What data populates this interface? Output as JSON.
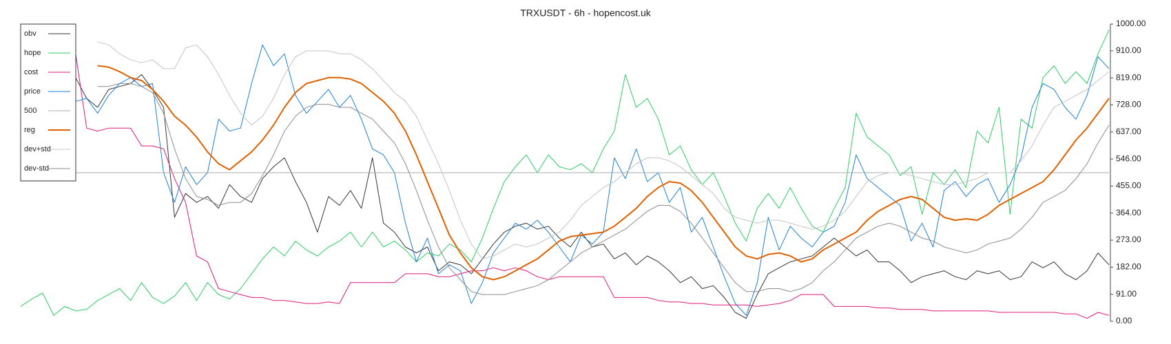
{
  "chart_data": {
    "type": "line",
    "title": "TRXUSDT - 6h - hopencost.uk",
    "ylim": [
      0,
      1000
    ],
    "yticks": [
      {
        "value": 0,
        "label": "0.00"
      },
      {
        "value": 91,
        "label": "91.00"
      },
      {
        "value": 182,
        "label": "182.00"
      },
      {
        "value": 273,
        "label": "273.00"
      },
      {
        "value": 364,
        "label": "364.00"
      },
      {
        "value": 455,
        "label": "455.00"
      },
      {
        "value": 546,
        "label": "546.00"
      },
      {
        "value": 637,
        "label": "637.00"
      },
      {
        "value": 728,
        "label": "728.00"
      },
      {
        "value": 819,
        "label": "819.00"
      },
      {
        "value": 910,
        "label": "910.00"
      },
      {
        "value": 1000,
        "label": "1000.00"
      }
    ],
    "y_axis_side": "right",
    "legend": "top-left",
    "series": [
      {
        "name": "obv",
        "color": "#333333",
        "width": 1,
        "values": [
          null,
          null,
          null,
          null,
          null,
          820,
          750,
          720,
          780,
          790,
          800,
          830,
          780,
          720,
          350,
          430,
          400,
          420,
          380,
          460,
          420,
          400,
          480,
          520,
          550,
          470,
          400,
          300,
          420,
          390,
          440,
          380,
          550,
          330,
          300,
          250,
          230,
          250,
          170,
          200,
          190,
          160,
          210,
          260,
          300,
          320,
          330,
          310,
          320,
          280,
          250,
          300,
          250,
          260,
          210,
          230,
          190,
          220,
          200,
          170,
          130,
          150,
          110,
          120,
          80,
          30,
          10,
          90,
          160,
          180,
          200,
          210,
          220,
          250,
          280,
          250,
          220,
          240,
          200,
          200,
          170,
          130,
          150,
          160,
          170,
          150,
          140,
          170,
          160,
          170,
          140,
          150,
          200,
          180,
          200,
          160,
          140,
          170,
          230,
          190
        ]
      },
      {
        "name": "hope",
        "color": "#2ecc62",
        "width": 1,
        "values": [
          50,
          75,
          95,
          20,
          50,
          35,
          40,
          70,
          90,
          110,
          70,
          130,
          80,
          60,
          85,
          130,
          70,
          130,
          90,
          75,
          110,
          160,
          210,
          250,
          220,
          270,
          240,
          220,
          250,
          270,
          300,
          250,
          300,
          250,
          270,
          240,
          200,
          230,
          220,
          260,
          240,
          200,
          280,
          380,
          470,
          520,
          560,
          500,
          560,
          520,
          510,
          530,
          500,
          580,
          640,
          830,
          720,
          750,
          680,
          560,
          590,
          510,
          460,
          500,
          420,
          330,
          270,
          380,
          430,
          380,
          450,
          380,
          320,
          300,
          380,
          450,
          700,
          620,
          590,
          560,
          490,
          520,
          360,
          500,
          460,
          510,
          450,
          640,
          600,
          720,
          360,
          680,
          650,
          820,
          860,
          800,
          840,
          800,
          900,
          980
        ]
      },
      {
        "name": "cost",
        "color": "#e0197a",
        "width": 1,
        "values": [
          null,
          null,
          null,
          null,
          null,
          900,
          650,
          640,
          650,
          650,
          650,
          590,
          590,
          580,
          480,
          400,
          220,
          200,
          110,
          100,
          90,
          80,
          80,
          70,
          70,
          65,
          60,
          60,
          65,
          60,
          130,
          130,
          130,
          130,
          130,
          160,
          160,
          160,
          150,
          150,
          160,
          170,
          170,
          180,
          170,
          180,
          170,
          150,
          140,
          150,
          150,
          150,
          150,
          150,
          80,
          80,
          80,
          80,
          70,
          65,
          65,
          60,
          60,
          55,
          55,
          55,
          55,
          50,
          55,
          60,
          70,
          90,
          90,
          90,
          50,
          50,
          50,
          50,
          45,
          45,
          40,
          40,
          40,
          35,
          35,
          35,
          35,
          35,
          35,
          30,
          30,
          30,
          30,
          30,
          30,
          25,
          25,
          10,
          30,
          20
        ]
      },
      {
        "name": "price",
        "color": "#1e7fd8",
        "width": 1,
        "values": [
          null,
          null,
          null,
          null,
          null,
          740,
          750,
          700,
          760,
          800,
          820,
          790,
          800,
          500,
          400,
          520,
          460,
          500,
          680,
          640,
          650,
          800,
          930,
          860,
          900,
          760,
          700,
          740,
          780,
          720,
          760,
          680,
          580,
          560,
          500,
          330,
          200,
          280,
          160,
          190,
          170,
          60,
          130,
          230,
          280,
          330,
          310,
          340,
          300,
          250,
          200,
          290,
          260,
          300,
          550,
          480,
          580,
          470,
          500,
          400,
          450,
          300,
          350,
          250,
          150,
          60,
          20,
          130,
          350,
          240,
          320,
          280,
          250,
          300,
          320,
          400,
          560,
          480,
          450,
          420,
          390,
          270,
          330,
          250,
          440,
          470,
          420,
          460,
          480,
          400,
          460,
          550,
          720,
          800,
          780,
          720,
          680,
          760,
          890,
          850
        ]
      },
      {
        "name": "500",
        "color": "#aaaaaa",
        "width": 1,
        "values": [
          500,
          500,
          500,
          500,
          500,
          500,
          500,
          500,
          500,
          500,
          500,
          500,
          500,
          500,
          500,
          500,
          500,
          500,
          500,
          500,
          500,
          500,
          500,
          500,
          500,
          500,
          500,
          500,
          500,
          500,
          500,
          500,
          500,
          500,
          500,
          500,
          500,
          500,
          500,
          500,
          500,
          500,
          500,
          500,
          500,
          500,
          500,
          500,
          500,
          500,
          500,
          500,
          500,
          500,
          500,
          500,
          500,
          500,
          500,
          500,
          500,
          500,
          500,
          500,
          500,
          500,
          500,
          500,
          500,
          500,
          500,
          500,
          500,
          500,
          500,
          500,
          500,
          500,
          500,
          500,
          500,
          500,
          500,
          500,
          500,
          500,
          500,
          500,
          500,
          500,
          500,
          500,
          500,
          500,
          500,
          500,
          500,
          500,
          500,
          500
        ]
      },
      {
        "name": "reg",
        "color": "#e06000",
        "width": 2,
        "values": [
          null,
          null,
          null,
          null,
          null,
          null,
          null,
          860,
          855,
          840,
          820,
          810,
          780,
          740,
          690,
          660,
          620,
          570,
          530,
          510,
          540,
          570,
          610,
          660,
          720,
          770,
          800,
          810,
          820,
          820,
          815,
          800,
          770,
          740,
          700,
          640,
          560,
          470,
          380,
          290,
          230,
          180,
          150,
          140,
          150,
          170,
          190,
          210,
          240,
          270,
          285,
          290,
          295,
          300,
          320,
          350,
          380,
          420,
          450,
          470,
          465,
          440,
          400,
          350,
          300,
          250,
          220,
          210,
          225,
          230,
          220,
          200,
          210,
          240,
          260,
          280,
          300,
          340,
          370,
          390,
          410,
          420,
          410,
          380,
          350,
          340,
          345,
          340,
          360,
          390,
          410,
          430,
          450,
          470,
          510,
          560,
          610,
          650,
          700,
          750
        ]
      },
      {
        "name": "dev+std",
        "color": "#c4c4c4",
        "width": 1,
        "values": [
          null,
          null,
          null,
          null,
          null,
          null,
          null,
          940,
          930,
          900,
          880,
          870,
          880,
          850,
          850,
          920,
          930,
          890,
          830,
          760,
          700,
          660,
          690,
          750,
          830,
          890,
          910,
          910,
          910,
          900,
          900,
          880,
          850,
          810,
          770,
          740,
          690,
          610,
          530,
          440,
          340,
          260,
          210,
          220,
          240,
          260,
          250,
          260,
          280,
          300,
          340,
          390,
          420,
          450,
          470,
          500,
          530,
          550,
          550,
          540,
          520,
          490,
          460,
          430,
          380,
          350,
          340,
          330,
          340,
          340,
          330,
          320,
          310,
          320,
          340,
          370,
          420,
          470,
          490,
          500,
          500,
          490,
          480,
          470,
          460,
          460,
          470,
          480,
          500,
          500,
          500,
          540,
          590,
          660,
          720,
          740,
          760,
          780,
          810,
          840
        ]
      },
      {
        "name": "dev-std",
        "color": "#8c8c8c",
        "width": 1,
        "values": [
          null,
          null,
          null,
          null,
          null,
          null,
          null,
          790,
          790,
          800,
          800,
          790,
          770,
          700,
          580,
          480,
          420,
          410,
          390,
          400,
          400,
          430,
          490,
          560,
          640,
          690,
          720,
          730,
          730,
          720,
          720,
          700,
          680,
          640,
          600,
          530,
          440,
          340,
          250,
          180,
          140,
          100,
          90,
          90,
          90,
          100,
          110,
          120,
          140,
          170,
          200,
          230,
          250,
          270,
          290,
          310,
          340,
          370,
          390,
          390,
          370,
          330,
          280,
          230,
          180,
          130,
          100,
          100,
          110,
          110,
          100,
          110,
          130,
          170,
          200,
          240,
          280,
          300,
          320,
          330,
          320,
          300,
          280,
          270,
          250,
          240,
          230,
          240,
          260,
          270,
          280,
          310,
          350,
          400,
          420,
          440,
          480,
          530,
          600,
          660
        ]
      }
    ]
  }
}
